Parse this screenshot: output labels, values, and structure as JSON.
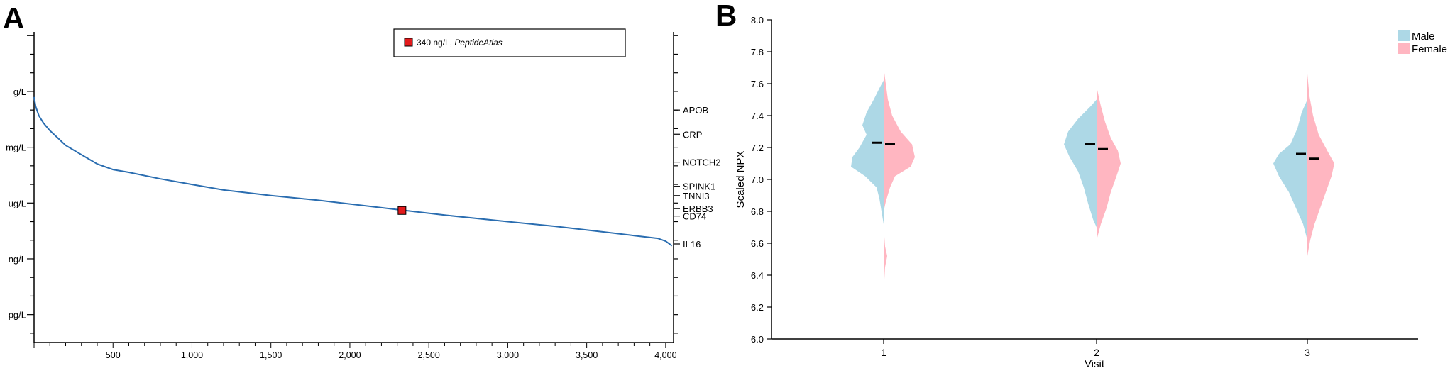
{
  "panels": {
    "a_label": "A",
    "b_label": "B"
  },
  "chart_data": [
    {
      "type": "line",
      "panel": "A",
      "title": "",
      "xlabel": "",
      "ylabel": "",
      "xlim": [
        0,
        4050
      ],
      "x_ticks": [
        500,
        1000,
        1500,
        2000,
        2500,
        3000,
        3500,
        4000
      ],
      "x_tick_labels": [
        "500",
        "1,000",
        "1,500",
        "2,000",
        "2,500",
        "3,000",
        "3,500",
        "4,000"
      ],
      "y_scale": "log10 concentration",
      "y_ticks": [
        {
          "label": "g/L",
          "log10_g_per_L": 0
        },
        {
          "label": "mg/L",
          "log10_g_per_L": -3
        },
        {
          "label": "ug/L",
          "log10_g_per_L": -6
        },
        {
          "label": "ng/L",
          "log10_g_per_L": -9
        },
        {
          "label": "pg/L",
          "log10_g_per_L": -12
        }
      ],
      "ylim_log10_g_per_L": [
        -13.5,
        3.2
      ],
      "series": [
        {
          "color": "#2a6db0",
          "x": [
            0,
            10,
            30,
            60,
            100,
            150,
            200,
            300,
            400,
            500,
            600,
            800,
            1000,
            1200,
            1500,
            1800,
            2000,
            2300,
            2600,
            3000,
            3300,
            3600,
            3800,
            3950,
            4000,
            4040
          ],
          "y": [
            -0.3,
            -0.8,
            -1.3,
            -1.7,
            -2.1,
            -2.5,
            -2.9,
            -3.4,
            -3.9,
            -4.2,
            -4.35,
            -4.7,
            -5.0,
            -5.3,
            -5.6,
            -5.85,
            -6.05,
            -6.35,
            -6.65,
            -7.0,
            -7.25,
            -7.55,
            -7.75,
            -7.9,
            -8.05,
            -8.3
          ]
        }
      ],
      "highlight": {
        "x": 2330,
        "y": -6.4,
        "color": "#e31a1c",
        "legend_text": "340 ng/L,",
        "legend_source": "PeptideAtlas"
      },
      "right_axis_labels": [
        {
          "label": "APOB",
          "log10_g_per_L": -1.0
        },
        {
          "label": "CRP",
          "log10_g_per_L": -2.3
        },
        {
          "label": "NOTCH2",
          "log10_g_per_L": -3.8
        },
        {
          "label": "SPINK1",
          "log10_g_per_L": -5.1
        },
        {
          "label": "TNNI3",
          "log10_g_per_L": -5.6
        },
        {
          "label": "ERBB3",
          "log10_g_per_L": -6.3
        },
        {
          "label": "CD74",
          "log10_g_per_L": -6.7
        },
        {
          "label": "IL16",
          "log10_g_per_L": -8.2
        }
      ]
    },
    {
      "type": "violin",
      "panel": "B",
      "title": "",
      "xlabel": "Visit",
      "ylabel": "Scaled NPX",
      "categories": [
        "1",
        "2",
        "3"
      ],
      "ylim": [
        6.0,
        8.0
      ],
      "y_ticks": [
        6.0,
        6.2,
        6.4,
        6.6,
        6.8,
        7.0,
        7.2,
        7.4,
        7.6,
        7.8,
        8.0
      ],
      "legend_position": "top-right",
      "series": [
        {
          "name": "Male",
          "color": "#add8e6",
          "side": "left",
          "medians": [
            7.23,
            7.22,
            7.16
          ]
        },
        {
          "name": "Female",
          "color": "#ffb6c1",
          "side": "right",
          "medians": [
            7.22,
            7.19,
            7.13
          ]
        }
      ]
    }
  ]
}
